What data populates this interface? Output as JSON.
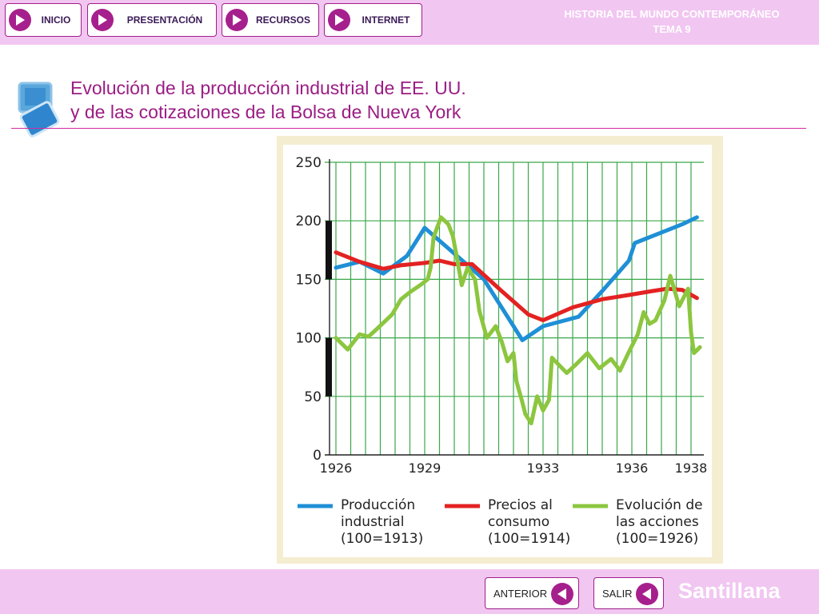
{
  "nav": {
    "inicio": "INICIO",
    "presentacion": "PRESENTACIÓN",
    "recursos": "RECURSOS",
    "internet": "INTERNET"
  },
  "app_title": {
    "line1": "HISTORIA DEL MUNDO CONTEMPORÁNEO",
    "line2": "TEMA 9"
  },
  "heading": {
    "line1": "Evolución de la producción industrial de EE. UU.",
    "line2": "y de las cotizaciones de la Bolsa de Nueva York"
  },
  "colors": {
    "accent": "#9b1d84",
    "bar": "#f1c6f1",
    "produccion": "#1f8fd6",
    "precios": "#e32222",
    "acciones": "#8cc63f",
    "grid": "#3aa84a"
  },
  "chart_data": {
    "type": "line",
    "xlabel": "",
    "ylabel": "",
    "xlim": [
      1926,
      1938.3
    ],
    "ylim": [
      0,
      250
    ],
    "y_ticks": [
      0,
      50,
      100,
      150,
      200,
      250
    ],
    "x_tick_labels": [
      {
        "year": 1926,
        "label": "1926"
      },
      {
        "year": 1929,
        "label": "1929"
      },
      {
        "year": 1933,
        "label": "1933"
      },
      {
        "year": 1936,
        "label": "1936"
      },
      {
        "year": 1938,
        "label": "1938"
      }
    ],
    "grid": true,
    "legend_position": "bottom",
    "series": [
      {
        "name": "Producción industrial (100=1913)",
        "legend_lines": [
          "Producción",
          "industrial",
          "(100=1913)"
        ],
        "color": "#1f8fd6",
        "points": [
          [
            1926,
            160
          ],
          [
            1926.8,
            165
          ],
          [
            1927.6,
            155
          ],
          [
            1928.4,
            170
          ],
          [
            1929,
            194
          ],
          [
            1931,
            150
          ],
          [
            1932.3,
            98
          ],
          [
            1933,
            110
          ],
          [
            1934.2,
            118
          ],
          [
            1935,
            140
          ],
          [
            1935.9,
            166
          ],
          [
            1936.1,
            181
          ],
          [
            1937,
            190
          ],
          [
            1937.7,
            197
          ],
          [
            1938.2,
            203
          ]
        ]
      },
      {
        "name": "Precios al consumo (100=1914)",
        "legend_lines": [
          "Precios al",
          "consumo",
          "(100=1914)"
        ],
        "color": "#e32222",
        "points": [
          [
            1926,
            173
          ],
          [
            1926.8,
            165
          ],
          [
            1927.6,
            159
          ],
          [
            1928.2,
            162
          ],
          [
            1929,
            164
          ],
          [
            1929.5,
            166
          ],
          [
            1930,
            163
          ],
          [
            1930.6,
            163
          ],
          [
            1931.6,
            140
          ],
          [
            1932.5,
            120
          ],
          [
            1933,
            115
          ],
          [
            1934,
            126
          ],
          [
            1935,
            133
          ],
          [
            1936,
            137
          ],
          [
            1936.7,
            140
          ],
          [
            1937.2,
            142
          ],
          [
            1937.7,
            141
          ],
          [
            1938.2,
            134
          ]
        ]
      },
      {
        "name": "Evolución de las acciones (100=1926)",
        "legend_lines": [
          "Evolución de",
          "las acciones",
          "(100=1926)"
        ],
        "color": "#8cc63f",
        "points": [
          [
            1926,
            100
          ],
          [
            1926.4,
            90
          ],
          [
            1926.8,
            103
          ],
          [
            1927.1,
            101
          ],
          [
            1927.4,
            108
          ],
          [
            1927.9,
            120
          ],
          [
            1928.2,
            133
          ],
          [
            1928.5,
            139
          ],
          [
            1928.9,
            146
          ],
          [
            1929.1,
            150
          ],
          [
            1929.2,
            160
          ],
          [
            1929.3,
            186
          ],
          [
            1929.55,
            203
          ],
          [
            1929.8,
            197
          ],
          [
            1929.95,
            187
          ],
          [
            1930.1,
            167
          ],
          [
            1930.25,
            145
          ],
          [
            1930.45,
            160
          ],
          [
            1930.7,
            150
          ],
          [
            1930.85,
            123
          ],
          [
            1931.1,
            100
          ],
          [
            1931.4,
            110
          ],
          [
            1931.6,
            97
          ],
          [
            1931.8,
            80
          ],
          [
            1932.0,
            87
          ],
          [
            1932.1,
            63
          ],
          [
            1932.3,
            45
          ],
          [
            1932.4,
            35
          ],
          [
            1932.6,
            27
          ],
          [
            1932.8,
            50
          ],
          [
            1933.0,
            38
          ],
          [
            1933.2,
            47
          ],
          [
            1933.3,
            83
          ],
          [
            1933.8,
            70
          ],
          [
            1934.1,
            77
          ],
          [
            1934.5,
            87
          ],
          [
            1934.9,
            74
          ],
          [
            1935.3,
            82
          ],
          [
            1935.6,
            72
          ],
          [
            1935.9,
            88
          ],
          [
            1936.2,
            103
          ],
          [
            1936.4,
            122
          ],
          [
            1936.6,
            112
          ],
          [
            1936.8,
            115
          ],
          [
            1937.1,
            132
          ],
          [
            1937.3,
            153
          ],
          [
            1937.6,
            127
          ],
          [
            1937.9,
            142
          ],
          [
            1938.0,
            105
          ],
          [
            1938.1,
            87
          ],
          [
            1938.3,
            92
          ]
        ]
      }
    ]
  },
  "footer": {
    "anterior": "ANTERIOR",
    "salir": "SALIR",
    "brand": "Santillana"
  }
}
